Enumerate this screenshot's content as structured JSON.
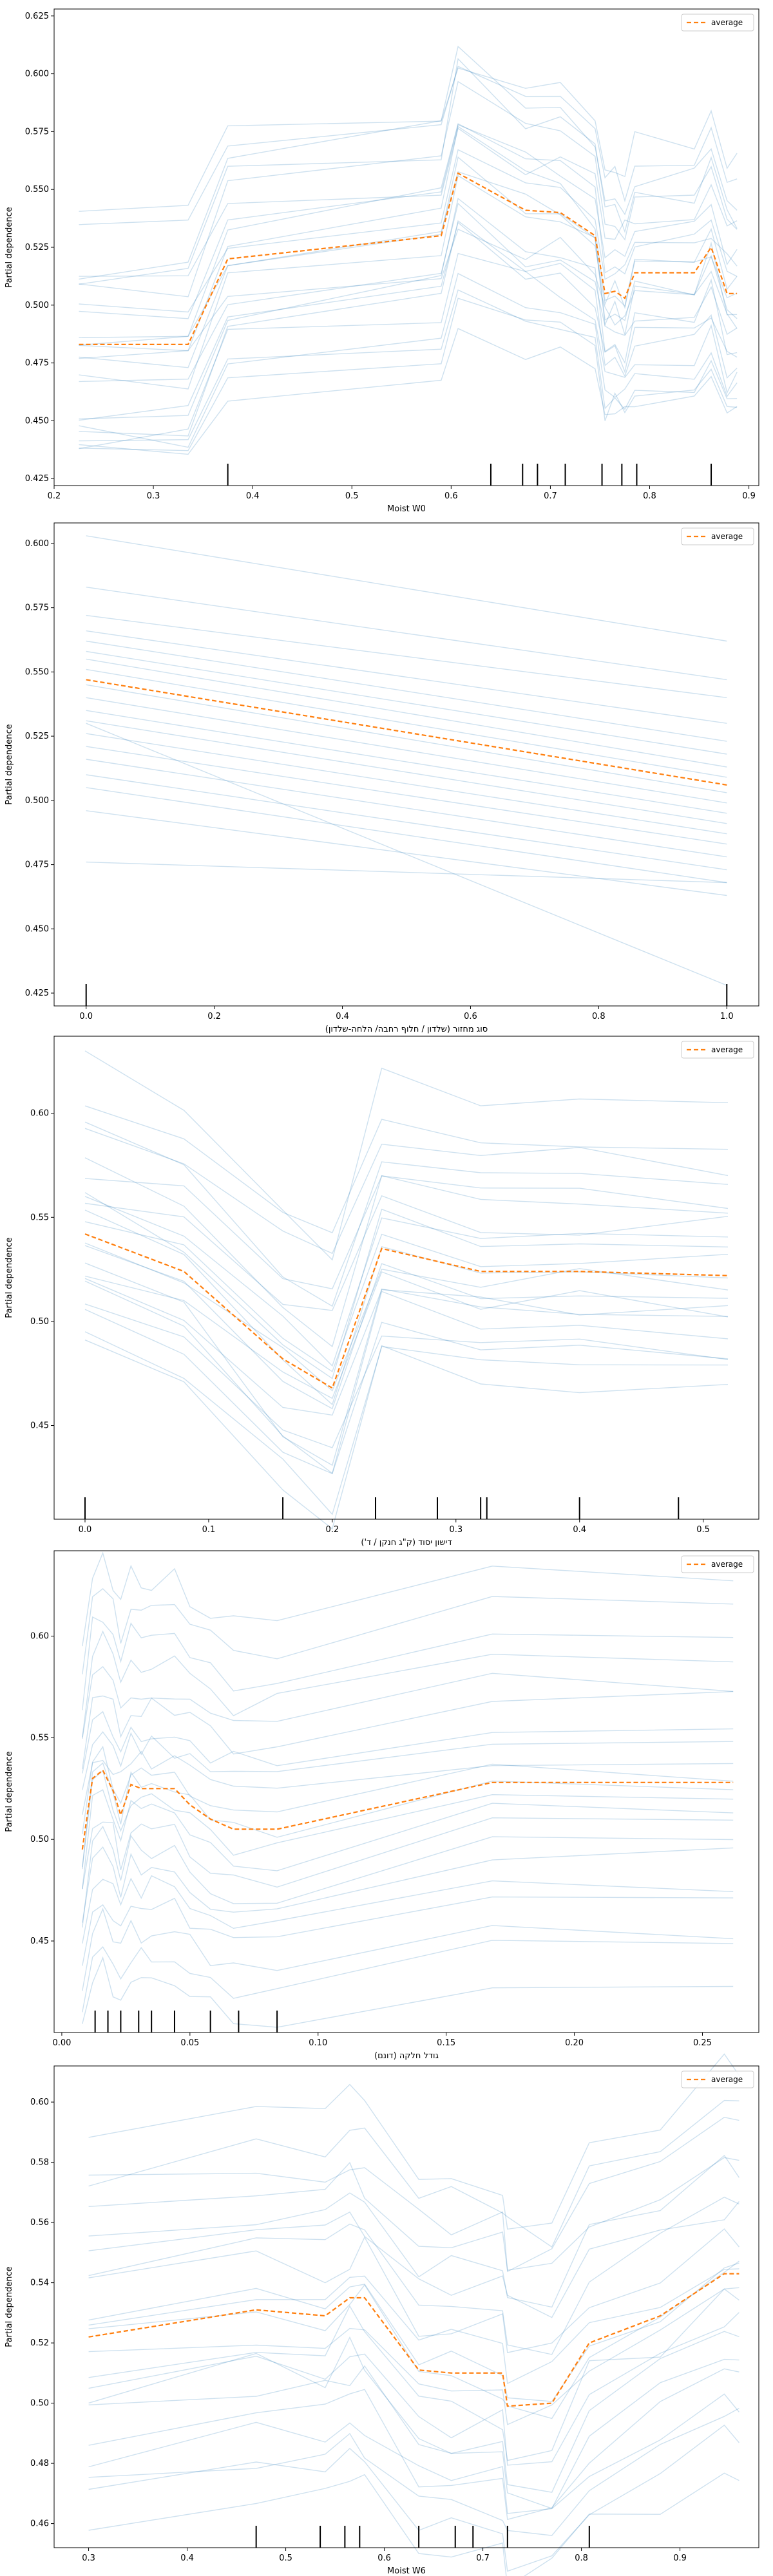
{
  "colors": {
    "ice": "#1f77b4",
    "average": "#ff7f0e",
    "axis": "#000000",
    "rug": "#000000"
  },
  "chart_data": [
    {
      "type": "line",
      "xlabel": "Moist W0",
      "ylabel": "Partial dependence",
      "xlim": [
        0.2,
        0.91
      ],
      "ylim": [
        0.422,
        0.628
      ],
      "xticks": [
        0.2,
        0.3,
        0.4,
        0.5,
        0.6,
        0.7,
        0.8,
        0.9
      ],
      "xtick_labels": [
        "0.2",
        "0.3",
        "0.4",
        "0.5",
        "0.6",
        "0.7",
        "0.8",
        "0.9"
      ],
      "yticks": [
        0.425,
        0.45,
        0.475,
        0.5,
        0.525,
        0.55,
        0.575,
        0.6,
        0.625
      ],
      "ytick_labels": [
        "0.425",
        "0.450",
        "0.475",
        "0.500",
        "0.525",
        "0.550",
        "0.575",
        "0.600",
        "0.625"
      ],
      "legend": "average",
      "legend_position": "top-right",
      "x": [
        0.225,
        0.335,
        0.375,
        0.59,
        0.607,
        0.675,
        0.71,
        0.745,
        0.755,
        0.765,
        0.775,
        0.785,
        0.845,
        0.862,
        0.878,
        0.888
      ],
      "average": [
        0.483,
        0.483,
        0.52,
        0.53,
        0.557,
        0.541,
        0.54,
        0.53,
        0.505,
        0.506,
        0.503,
        0.514,
        0.514,
        0.525,
        0.505,
        0.505
      ],
      "ice_offsets": [
        0.055,
        0.048,
        0.041,
        0.035,
        0.03,
        0.025,
        0.019,
        0.014,
        0.01,
        0.005,
        0.0,
        -0.004,
        -0.008,
        -0.013,
        -0.018,
        -0.022,
        -0.027,
        -0.031,
        -0.036,
        -0.041,
        -0.046,
        -0.05,
        -0.055
      ],
      "rug": [
        0.375,
        0.64,
        0.672,
        0.687,
        0.715,
        0.752,
        0.772,
        0.787,
        0.862
      ]
    },
    {
      "type": "line",
      "xlabel": "סוג מחזור (שלדון / חלוף רחבה/ הלחה-שלדון)",
      "ylabel": "Partial dependence",
      "xlim": [
        -0.05,
        1.05
      ],
      "ylim": [
        0.42,
        0.608
      ],
      "xticks": [
        0.0,
        0.2,
        0.4,
        0.6,
        0.8,
        1.0
      ],
      "xtick_labels": [
        "0.0",
        "0.2",
        "0.4",
        "0.6",
        "0.8",
        "1.0"
      ],
      "yticks": [
        0.425,
        0.45,
        0.475,
        0.5,
        0.525,
        0.55,
        0.575,
        0.6
      ],
      "ytick_labels": [
        "0.425",
        "0.450",
        "0.475",
        "0.500",
        "0.525",
        "0.550",
        "0.575",
        "0.600"
      ],
      "legend": "average",
      "legend_position": "top-right",
      "x": [
        0.0,
        1.0
      ],
      "average": [
        0.547,
        0.506
      ],
      "ice_lines": [
        [
          0.603,
          0.562
        ],
        [
          0.583,
          0.547
        ],
        [
          0.572,
          0.54
        ],
        [
          0.566,
          0.53
        ],
        [
          0.562,
          0.523
        ],
        [
          0.558,
          0.518
        ],
        [
          0.555,
          0.513
        ],
        [
          0.551,
          0.509
        ],
        [
          0.545,
          0.503
        ],
        [
          0.54,
          0.499
        ],
        [
          0.535,
          0.495
        ],
        [
          0.531,
          0.491
        ],
        [
          0.526,
          0.487
        ],
        [
          0.521,
          0.483
        ],
        [
          0.516,
          0.478
        ],
        [
          0.51,
          0.473
        ],
        [
          0.505,
          0.468
        ],
        [
          0.496,
          0.463
        ],
        [
          0.476,
          0.468
        ],
        [
          0.53,
          0.428
        ]
      ],
      "rug": [
        0.0,
        1.0
      ]
    },
    {
      "type": "line",
      "xlabel": "דישון יסוד (ק\"ג חנקן / ד')",
      "ylabel": "Partial dependence",
      "xlim": [
        -0.025,
        0.545
      ],
      "ylim": [
        0.405,
        0.637
      ],
      "xticks": [
        0.0,
        0.1,
        0.2,
        0.3,
        0.4,
        0.5
      ],
      "xtick_labels": [
        "0.0",
        "0.1",
        "0.2",
        "0.3",
        "0.4",
        "0.5"
      ],
      "yticks": [
        0.45,
        0.5,
        0.55,
        0.6
      ],
      "ytick_labels": [
        "0.45",
        "0.50",
        "0.55",
        "0.60"
      ],
      "legend": "average",
      "legend_position": "top-right",
      "x": [
        0.0,
        0.08,
        0.16,
        0.2,
        0.24,
        0.32,
        0.4,
        0.52
      ],
      "average": [
        0.542,
        0.524,
        0.482,
        0.468,
        0.535,
        0.524,
        0.524,
        0.522
      ],
      "ice_offsets": [
        0.08,
        0.066,
        0.055,
        0.045,
        0.037,
        0.03,
        0.024,
        0.018,
        0.012,
        0.007,
        0.002,
        -0.003,
        -0.008,
        -0.013,
        -0.018,
        -0.023,
        -0.029,
        -0.035,
        -0.041,
        -0.048,
        -0.055
      ],
      "rug": [
        0.0,
        0.16,
        0.235,
        0.285,
        0.32,
        0.325,
        0.4,
        0.48
      ]
    },
    {
      "type": "line",
      "xlabel": "גודל חלקה (דונם)",
      "ylabel": "Partial dependence",
      "xlim": [
        -0.003,
        0.272
      ],
      "ylim": [
        0.405,
        0.642
      ],
      "xticks": [
        0.0,
        0.05,
        0.1,
        0.15,
        0.2,
        0.25
      ],
      "xtick_labels": [
        "0.00",
        "0.05",
        "0.10",
        "0.15",
        "0.20",
        "0.25"
      ],
      "yticks": [
        0.45,
        0.5,
        0.55,
        0.6
      ],
      "ytick_labels": [
        "0.45",
        "0.50",
        "0.55",
        "0.60"
      ],
      "legend": "average",
      "legend_position": "top-right",
      "x": [
        0.008,
        0.012,
        0.016,
        0.02,
        0.023,
        0.027,
        0.031,
        0.035,
        0.044,
        0.05,
        0.058,
        0.067,
        0.084,
        0.168,
        0.262
      ],
      "average": [
        0.495,
        0.53,
        0.534,
        0.524,
        0.512,
        0.527,
        0.525,
        0.525,
        0.525,
        0.517,
        0.51,
        0.505,
        0.505,
        0.528,
        0.528
      ],
      "ice_offsets": [
        0.102,
        0.09,
        0.075,
        0.062,
        0.05,
        0.04,
        0.03,
        0.022,
        0.014,
        0.007,
        0.0,
        -0.007,
        -0.014,
        -0.022,
        -0.03,
        -0.038,
        -0.048,
        -0.058,
        -0.07,
        -0.082,
        -0.095
      ],
      "rug": [
        0.013,
        0.018,
        0.023,
        0.03,
        0.035,
        0.044,
        0.058,
        0.069,
        0.084
      ]
    },
    {
      "type": "line",
      "xlabel": "Moist W6",
      "ylabel": "Partial dependence",
      "xlim": [
        0.265,
        0.98
      ],
      "ylim": [
        0.452,
        0.612
      ],
      "xticks": [
        0.3,
        0.4,
        0.5,
        0.6,
        0.7,
        0.8,
        0.9
      ],
      "xtick_labels": [
        "0.3",
        "0.4",
        "0.5",
        "0.6",
        "0.7",
        "0.8",
        "0.9"
      ],
      "yticks": [
        0.46,
        0.48,
        0.5,
        0.52,
        0.54,
        0.56,
        0.58,
        0.6
      ],
      "ytick_labels": [
        "0.46",
        "0.48",
        "0.50",
        "0.52",
        "0.54",
        "0.56",
        "0.58",
        "0.60"
      ],
      "legend": "average",
      "legend_position": "top-right",
      "x": [
        0.3,
        0.47,
        0.54,
        0.565,
        0.58,
        0.635,
        0.668,
        0.72,
        0.725,
        0.77,
        0.808,
        0.88,
        0.945,
        0.96
      ],
      "average": [
        0.522,
        0.531,
        0.529,
        0.535,
        0.535,
        0.511,
        0.51,
        0.51,
        0.499,
        0.5,
        0.52,
        0.529,
        0.543,
        0.543
      ],
      "ice_offsets": [
        0.066,
        0.056,
        0.048,
        0.041,
        0.034,
        0.027,
        0.021,
        0.015,
        0.009,
        0.004,
        -0.001,
        -0.006,
        -0.011,
        -0.016,
        -0.022,
        -0.028,
        -0.034,
        -0.04,
        -0.047,
        -0.054,
        -0.06
      ],
      "rug": [
        0.47,
        0.535,
        0.56,
        0.575,
        0.635,
        0.672,
        0.69,
        0.725,
        0.808
      ]
    }
  ]
}
